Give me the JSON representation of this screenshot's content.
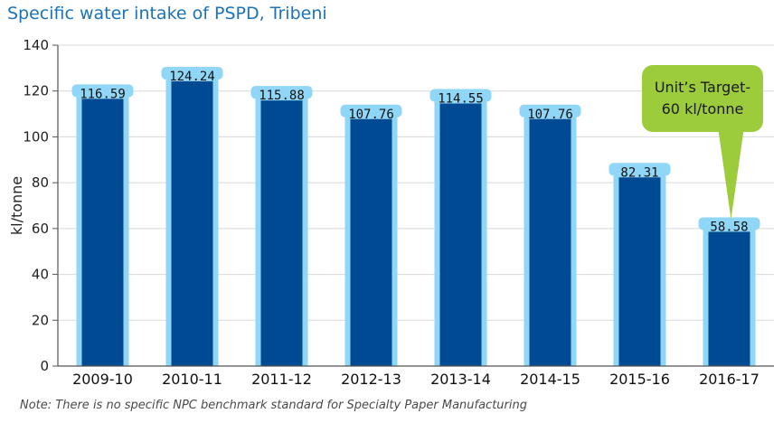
{
  "title": "Specific water intake of PSPD, Tribeni",
  "note": "Note: There is no specific NPC benchmark standard for Specialty Paper Manufacturing",
  "colors": {
    "title": "#1c73b7",
    "bar_dark": "#004a93",
    "bar_light": "#8fd6f7",
    "callout": "#9ccb3b",
    "grid": "#d8d8d8",
    "axis": "#555555"
  },
  "chart_data": {
    "type": "bar",
    "title": "Specific water intake of PSPD, Tribeni",
    "xlabel": "",
    "ylabel": "kl/tonne",
    "ylim": [
      0,
      140
    ],
    "yticks": [
      0,
      20,
      40,
      60,
      80,
      100,
      120,
      140
    ],
    "grid": true,
    "categories": [
      "2009-10",
      "2010-11",
      "2011-12",
      "2012-13",
      "2013-14",
      "2014-15",
      "2015-16",
      "2016-17"
    ],
    "values": [
      116.59,
      124.24,
      115.88,
      107.76,
      114.55,
      107.76,
      82.31,
      58.58
    ],
    "value_labels": [
      "116.59",
      "124.24",
      "115.88",
      "107.76",
      "114.55",
      "107.76",
      "82.31",
      "58.58"
    ],
    "annotation": {
      "line1": "Unit’s Target-",
      "line2": "60 kl/tonne",
      "category": "2016-17"
    }
  }
}
